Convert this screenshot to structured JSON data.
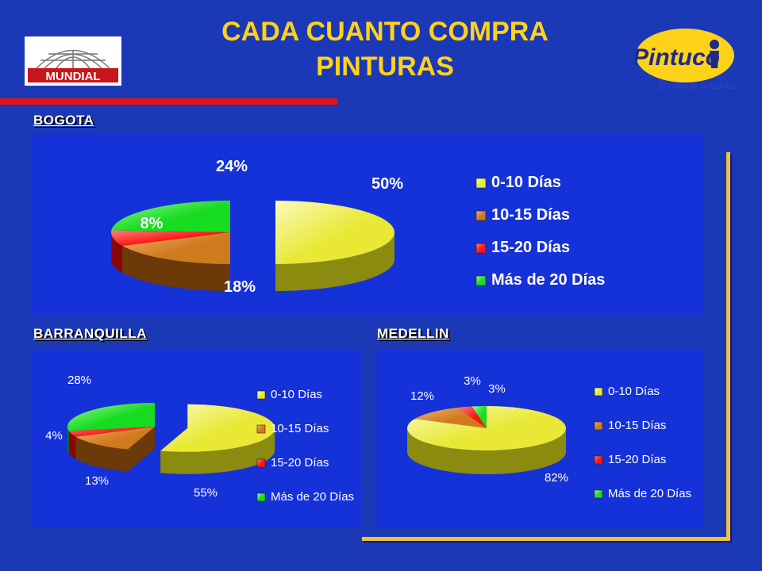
{
  "title": [
    "CADA CUANTO COMPRA",
    "PINTURAS"
  ],
  "logos": {
    "left": "MUNDIAL",
    "right": "Pintuco",
    "right_tagline": "El Color de la Calidad"
  },
  "colors": {
    "background": "#1b38b6",
    "title": "#ffd21a",
    "accent": "#e0141a",
    "frame": "#f2c23a"
  },
  "chart_data": [
    {
      "type": "pie",
      "section_label": "BOGOTA",
      "categories": [
        "0-10 Días",
        "10-15 Días",
        "15-20 Días",
        "Más de 20 Días"
      ],
      "values": [
        50,
        18,
        8,
        24
      ],
      "value_labels": [
        "50%",
        "18%",
        "8%",
        "24%"
      ],
      "legend": "right"
    },
    {
      "type": "pie",
      "section_label": "BARRANQUILLA",
      "categories": [
        "0-10 Días",
        "10-15 Días",
        "15-20 Días",
        "Más de 20 Días"
      ],
      "values": [
        55,
        13,
        4,
        28
      ],
      "value_labels": [
        "55%",
        "13%",
        "4%",
        "28%"
      ],
      "legend": "right"
    },
    {
      "type": "pie",
      "section_label": "MEDELLIN",
      "categories": [
        "0-10 Días",
        "10-15 Días",
        "15-20 Días",
        "Más de 20 Días"
      ],
      "values": [
        82,
        12,
        3,
        3
      ],
      "value_labels": [
        "82%",
        "12%",
        "3%",
        "3%"
      ],
      "legend": "right"
    }
  ]
}
